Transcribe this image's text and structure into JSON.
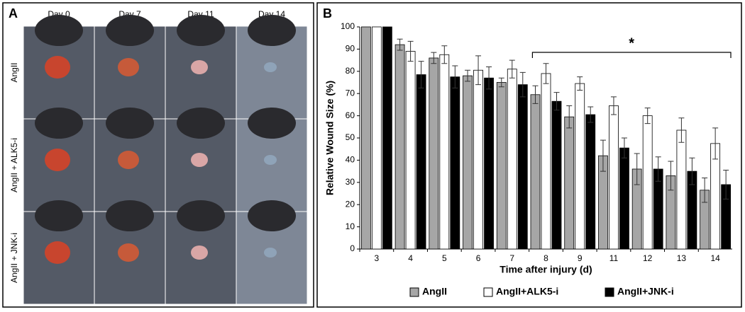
{
  "panel_a": {
    "label": "A",
    "columns": [
      "Day  0",
      "Day 7",
      "Day 11",
      "Day 14"
    ],
    "rows": [
      "AngII",
      "AngII + ALK5-i",
      "AngII + JNK-i"
    ]
  },
  "chart_data": {
    "type": "bar",
    "panel_label": "B",
    "y_label": "Relative Wound Size (%)",
    "x_label": "Time after injury (d)",
    "annotation": "*",
    "categories": [
      "3",
      "4",
      "5",
      "6",
      "7",
      "8",
      "9",
      "11",
      "12",
      "13",
      "14"
    ],
    "series": [
      {
        "name": "AngII",
        "color": "#a6a6a6",
        "values": [
          100,
          92,
          86,
          78,
          75,
          69.5,
          59.5,
          42,
          36,
          33,
          26.5
        ],
        "errors": [
          0,
          2.5,
          2.5,
          2.5,
          2,
          4,
          5,
          7,
          7,
          6.5,
          5.5
        ]
      },
      {
        "name": "AngII+ALK5-i",
        "color": "#ffffff",
        "values": [
          100,
          89,
          87.5,
          80.5,
          81,
          79,
          74.5,
          64.5,
          60,
          53.5,
          47.5
        ],
        "errors": [
          0,
          4.5,
          4,
          6.5,
          4,
          4.5,
          3,
          4,
          3.5,
          5.5,
          7
        ]
      },
      {
        "name": "AngII+JNK-i",
        "color": "#000000",
        "values": [
          100,
          78.5,
          77.5,
          77,
          74,
          66.5,
          60.5,
          45.5,
          36,
          35,
          29
        ],
        "errors": [
          0,
          6,
          5,
          5,
          5.5,
          4,
          3.5,
          4.5,
          5.5,
          6,
          6.5
        ]
      }
    ],
    "ylim": [
      0,
      100
    ],
    "yticks": [
      0,
      10,
      20,
      30,
      40,
      50,
      60,
      70,
      80,
      90,
      100
    ],
    "grid": false,
    "legend": "bottom"
  }
}
